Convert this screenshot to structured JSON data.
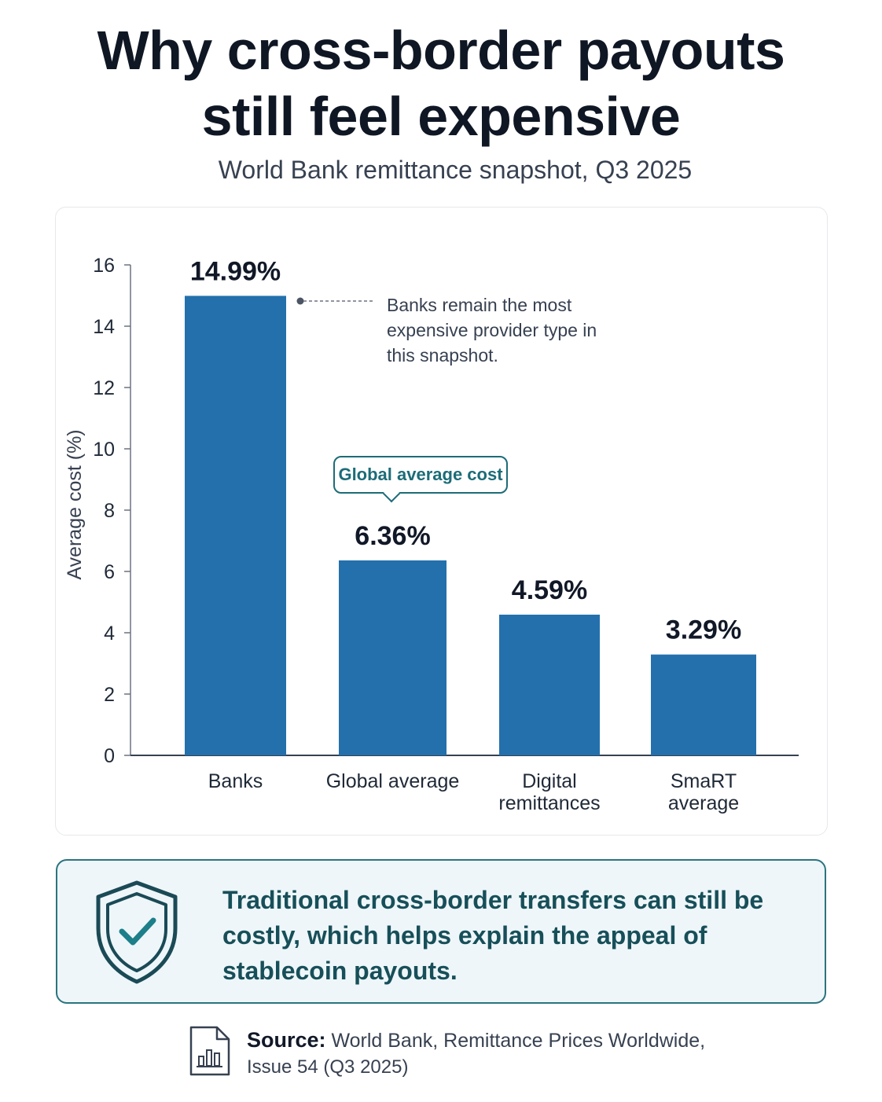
{
  "header": {
    "title_line1": "Why cross-border payouts",
    "title_line2": "still feel expensive",
    "subtitle": "World Bank remittance snapshot, Q3 2025"
  },
  "chart_data": {
    "type": "bar",
    "categories": [
      [
        "Banks"
      ],
      [
        "Global average"
      ],
      [
        "Digital",
        "remittances"
      ],
      [
        "SmaRT",
        "average"
      ]
    ],
    "values": [
      14.99,
      6.36,
      4.59,
      3.29
    ],
    "value_labels": [
      "14.99%",
      "6.36%",
      "4.59%",
      "3.29%"
    ],
    "ylabel": "Average cost (%)",
    "ylim": [
      0,
      16
    ],
    "yticks": [
      0,
      2,
      4,
      6,
      8,
      10,
      12,
      14,
      16
    ],
    "grid": false,
    "bar_color": "#2370ad",
    "annotations": {
      "banks_note": "Banks remain the most expensive provider type in this snapshot.",
      "global_callout": "Global average cost"
    }
  },
  "takeaway": {
    "text": "Traditional cross-border transfers can still be costly, which helps explain the appeal of stablecoin payouts.",
    "icon": "shield-check-icon",
    "accent": "#1c6c77"
  },
  "source": {
    "label": "Source:",
    "text_line1": "World Bank, Remittance Prices Worldwide,",
    "text_line2": "Issue 54 (Q3 2025)",
    "icon": "document-chart-icon"
  }
}
